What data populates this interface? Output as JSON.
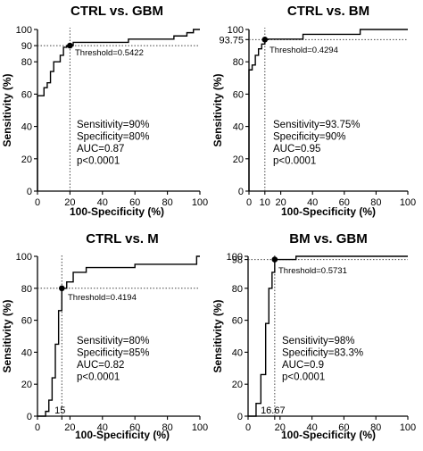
{
  "chart_data": [
    {
      "type": "line",
      "title": "CTRL vs. GBM",
      "xlabel": "100-Specificity (%)",
      "ylabel": "Sensitivity (%)",
      "xlim": [
        0,
        100
      ],
      "ylim": [
        0,
        100
      ],
      "xticks": [
        "0",
        "20",
        "40",
        "60",
        "80",
        "100"
      ],
      "yticks": [
        "0",
        "20",
        "40",
        "60",
        "80",
        "90",
        "100"
      ],
      "series": [
        {
          "x": [
            0,
            0,
            4,
            4,
            6,
            6,
            8,
            8,
            10,
            10,
            14,
            14,
            16,
            16,
            18,
            18,
            20,
            20,
            22,
            22,
            56,
            56,
            84,
            84,
            92,
            92,
            96,
            96,
            100
          ],
          "y": [
            0,
            59,
            59,
            64,
            64,
            67,
            67,
            74,
            74,
            80,
            80,
            84,
            84,
            89,
            89,
            90,
            90,
            90,
            90,
            92,
            92,
            94,
            94,
            96,
            96,
            98,
            98,
            100,
            100
          ]
        }
      ],
      "threshold_point": {
        "x": 20,
        "y": 90
      },
      "threshold_label": "Threshold=0.5422",
      "annotations": [
        "Sensitivity=90%",
        "Specificity=80%",
        "AUC=0.87",
        "p<0.0001"
      ]
    },
    {
      "type": "line",
      "title": "CTRL vs. BM",
      "xlabel": "100-Specificity (%)",
      "ylabel": "Sensitivity (%)",
      "xlim": [
        0,
        100
      ],
      "ylim": [
        0,
        100
      ],
      "xticks": [
        "0",
        "10",
        "20",
        "40",
        "60",
        "80",
        "100"
      ],
      "yticks": [
        "0",
        "20",
        "40",
        "60",
        "80",
        "93.75",
        "100"
      ],
      "series": [
        {
          "x": [
            0,
            0,
            2,
            2,
            4,
            4,
            6,
            6,
            8,
            8,
            10,
            10,
            12,
            12,
            34,
            34,
            70,
            70,
            100
          ],
          "y": [
            0,
            75,
            75,
            78,
            78,
            84,
            84,
            88,
            88,
            91,
            91,
            93.75,
            93.75,
            94,
            94,
            97,
            97,
            100,
            100
          ]
        }
      ],
      "threshold_point": {
        "x": 10,
        "y": 93.75
      },
      "threshold_label": "Threshold=0.4294",
      "annotations": [
        "Sensitivity=93.75%",
        "Specificity=90%",
        "AUC=0.95",
        "p<0.0001"
      ]
    },
    {
      "type": "line",
      "title": "CTRL vs.  M",
      "xlabel": "100-Specificity (%)",
      "ylabel": "Sensitivity (%)",
      "xlim": [
        0,
        100
      ],
      "ylim": [
        0,
        100
      ],
      "xticks": [
        "0",
        "15",
        "20",
        "40",
        "60",
        "80",
        "100"
      ],
      "yticks": [
        "0",
        "20",
        "40",
        "60",
        "80",
        "100"
      ],
      "series": [
        {
          "x": [
            0,
            5,
            5,
            7,
            7,
            9,
            9,
            11,
            11,
            13,
            13,
            15,
            15,
            18,
            18,
            22,
            22,
            30,
            30,
            60,
            60,
            98,
            98,
            100
          ],
          "y": [
            0,
            0,
            3,
            3,
            10,
            10,
            24,
            24,
            45,
            45,
            66,
            66,
            80,
            80,
            84,
            84,
            90,
            90,
            93,
            93,
            95,
            95,
            100,
            100
          ]
        }
      ],
      "threshold_point": {
        "x": 15,
        "y": 80
      },
      "threshold_label": "Threshold=0.4194",
      "annotations": [
        "Sensitivity=80%",
        "Specificity=85%",
        "AUC=0.82",
        "p<0.0001"
      ]
    },
    {
      "type": "line",
      "title": "BM vs. GBM",
      "xlabel": "100-Specificity (%)",
      "ylabel": "Sensitivity (%)",
      "xlim": [
        0,
        100
      ],
      "ylim": [
        0,
        100
      ],
      "xticks": [
        "0",
        "16.67",
        "20",
        "40",
        "60",
        "80",
        "100"
      ],
      "yticks": [
        "0",
        "20",
        "40",
        "60",
        "80",
        "98",
        "100"
      ],
      "series": [
        {
          "x": [
            0,
            5,
            5,
            8,
            8,
            11,
            11,
            13,
            13,
            15,
            15,
            16.67,
            16.67,
            30,
            30,
            100
          ],
          "y": [
            0,
            0,
            8,
            8,
            26,
            26,
            58,
            58,
            80,
            80,
            90,
            90,
            98,
            98,
            100,
            100
          ]
        }
      ],
      "threshold_point": {
        "x": 16.67,
        "y": 98
      },
      "threshold_label": "Threshold=0.5731",
      "annotations": [
        "Sensitivity=98%",
        "Specificity=83.3%",
        "AUC=0.9",
        "p<0.0001"
      ]
    }
  ]
}
